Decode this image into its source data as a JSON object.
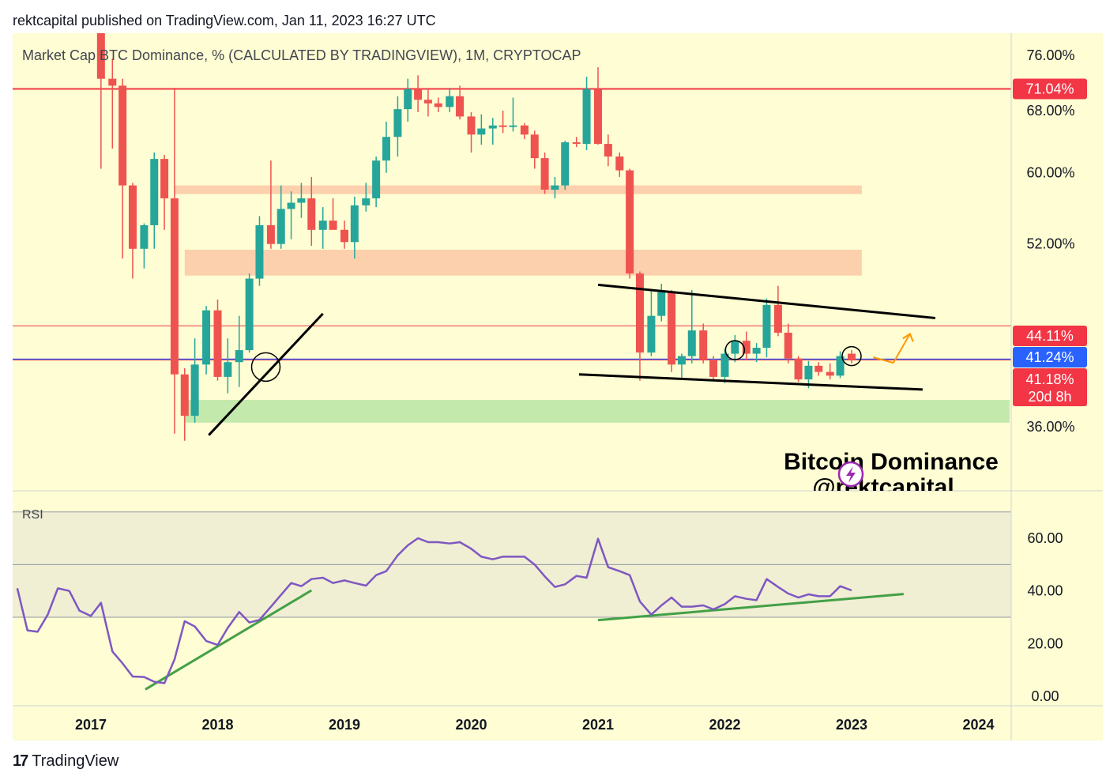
{
  "header": {
    "published_line": "rektcapital published on TradingView.com, Jan 11, 2023 16:27 UTC"
  },
  "footer": {
    "brand_mark": "17",
    "brand": "TradingView"
  },
  "colors": {
    "panel_bg": "#fefdd3",
    "up": "#26a69a",
    "down": "#ef5350",
    "resistance_line": "#f23645",
    "current_line": "#2962ff",
    "zone_salmon": "#fbc8a6",
    "zone_green": "#b8e5a5",
    "rsi_line": "#7e57c2",
    "trend_green": "#43a047",
    "arrow_orange": "#ff9800"
  },
  "chart_data": [
    {
      "type": "candlestick",
      "title": "Market Cap BTC Dominance, % (CALCULATED BY TRADINGVIEW), 1M, CRYPTOCAP",
      "interval": "1M",
      "y_scale": "log",
      "ylim": [
        30.5,
        78.5
      ],
      "x_axis_labels": [
        "2017",
        "2018",
        "2019",
        "2020",
        "2021",
        "2022",
        "2023",
        "2024"
      ],
      "y_ticks": [
        "76.00%",
        "68.00%",
        "60.00%",
        "52.00%",
        "36.00%"
      ],
      "y_tick_values": [
        76,
        68,
        60,
        52,
        36
      ],
      "grid": false,
      "price_labels": [
        {
          "text": "71.04%",
          "value": 71.04,
          "color": "#f23645"
        },
        {
          "text": "44.11%",
          "value": 44.11,
          "color": "#f23645"
        },
        {
          "text": "41.24%",
          "value": 41.24,
          "color": "#2962ff"
        },
        {
          "text": "41.18%",
          "sub": "20d 8h",
          "value": 41.18,
          "color": "#f23645"
        }
      ],
      "horizontal_lines": [
        {
          "value": 71.04,
          "color": "#f23645",
          "width": 2
        },
        {
          "value": 44.11,
          "color": "#f23645",
          "width": 1
        },
        {
          "value": 41.24,
          "color": "#2962ff",
          "width": 1.5
        },
        {
          "value": 41.18,
          "color": "#f23645",
          "width": 1
        }
      ],
      "zones": [
        {
          "from_date": "2017.66",
          "to_date": "2023.08",
          "low": 57.5,
          "high": 58.5,
          "color": "#fbc8a6"
        },
        {
          "from_date": "2017.74",
          "to_date": "2023.08",
          "low": 48.8,
          "high": 51.4,
          "color": "#fbc8a6"
        },
        {
          "from_date": "2017.74",
          "to_date": "2024.25",
          "low": 36.3,
          "high": 38.0,
          "color": "#b8e5a5"
        }
      ],
      "trendlines": [
        {
          "from": [
            "2017.93",
            35.4
          ],
          "to": [
            "2018.83",
            45.2
          ],
          "color": "#000000"
        },
        {
          "from": [
            "2021.00",
            47.9
          ],
          "to": [
            "2023.66",
            44.8
          ],
          "color": "#000000"
        },
        {
          "from": [
            "2020.85",
            40.0
          ],
          "to": [
            "2023.56",
            38.8
          ],
          "color": "#000000"
        }
      ],
      "markers": [
        {
          "type": "circle",
          "date": "2018.38",
          "value": 40.6
        },
        {
          "type": "circle",
          "date": "2022.08",
          "value": 42.0
        },
        {
          "type": "circle",
          "date": "2023.00",
          "value": 41.5
        }
      ],
      "arrow": {
        "from": [
          "2023.17",
          41.2
        ],
        "to": [
          "2023.46",
          43.4
        ],
        "color": "#ff9800"
      },
      "watermark": {
        "line1": "Bitcoin Dominance",
        "line2": "@rektcapital"
      },
      "candles": [
        {
          "d": "2017.08",
          "o": 88.0,
          "h": 88.5,
          "l": 60.5,
          "c": 72.5
        },
        {
          "d": "2017.17",
          "o": 72.5,
          "h": 75.5,
          "l": 63.0,
          "c": 71.5
        },
        {
          "d": "2017.25",
          "o": 71.5,
          "h": 72.5,
          "l": 50.5,
          "c": 58.5
        },
        {
          "d": "2017.33",
          "o": 58.5,
          "h": 58.8,
          "l": 48.5,
          "c": 51.5
        },
        {
          "d": "2017.42",
          "o": 51.5,
          "h": 54.2,
          "l": 49.5,
          "c": 54.0
        },
        {
          "d": "2017.50",
          "o": 54.0,
          "h": 62.5,
          "l": 51.5,
          "c": 61.7
        },
        {
          "d": "2017.58",
          "o": 61.7,
          "h": 62.2,
          "l": 53.5,
          "c": 57.0
        },
        {
          "d": "2017.66",
          "o": 57.0,
          "h": 71.2,
          "l": 35.5,
          "c": 40.0
        },
        {
          "d": "2017.74",
          "o": 40.0,
          "h": 40.5,
          "l": 35.0,
          "c": 36.8
        },
        {
          "d": "2017.82",
          "o": 36.8,
          "h": 43.0,
          "l": 36.3,
          "c": 40.8
        },
        {
          "d": "2017.91",
          "o": 40.8,
          "h": 45.9,
          "l": 40.0,
          "c": 45.5
        },
        {
          "d": "2018.00",
          "o": 45.5,
          "h": 46.5,
          "l": 39.5,
          "c": 39.8
        },
        {
          "d": "2018.08",
          "o": 39.8,
          "h": 43.0,
          "l": 38.5,
          "c": 41.0
        },
        {
          "d": "2018.17",
          "o": 41.0,
          "h": 45.0,
          "l": 39.0,
          "c": 42.0
        },
        {
          "d": "2018.25",
          "o": 42.0,
          "h": 49.0,
          "l": 41.8,
          "c": 48.5
        },
        {
          "d": "2018.33",
          "o": 48.5,
          "h": 55.0,
          "l": 47.8,
          "c": 54.0
        },
        {
          "d": "2018.42",
          "o": 54.0,
          "h": 61.5,
          "l": 51.5,
          "c": 52.0
        },
        {
          "d": "2018.50",
          "o": 52.0,
          "h": 58.5,
          "l": 51.5,
          "c": 55.8
        },
        {
          "d": "2018.58",
          "o": 55.8,
          "h": 57.8,
          "l": 52.5,
          "c": 56.5
        },
        {
          "d": "2018.66",
          "o": 56.5,
          "h": 58.8,
          "l": 54.8,
          "c": 57.0
        },
        {
          "d": "2018.74",
          "o": 57.0,
          "h": 59.5,
          "l": 51.8,
          "c": 53.5
        },
        {
          "d": "2018.83",
          "o": 53.5,
          "h": 56.0,
          "l": 51.5,
          "c": 54.5
        },
        {
          "d": "2018.91",
          "o": 54.5,
          "h": 57.0,
          "l": 53.8,
          "c": 53.5
        },
        {
          "d": "2019.00",
          "o": 53.5,
          "h": 54.5,
          "l": 51.5,
          "c": 52.2
        },
        {
          "d": "2019.08",
          "o": 52.2,
          "h": 57.2,
          "l": 50.5,
          "c": 56.2
        },
        {
          "d": "2019.17",
          "o": 56.2,
          "h": 58.8,
          "l": 55.5,
          "c": 57.0
        },
        {
          "d": "2019.25",
          "o": 57.0,
          "h": 62.0,
          "l": 56.0,
          "c": 61.5
        },
        {
          "d": "2019.33",
          "o": 61.5,
          "h": 66.5,
          "l": 60.0,
          "c": 64.5
        },
        {
          "d": "2019.42",
          "o": 64.5,
          "h": 70.0,
          "l": 62.0,
          "c": 68.2
        },
        {
          "d": "2019.50",
          "o": 68.2,
          "h": 72.5,
          "l": 66.5,
          "c": 71.0
        },
        {
          "d": "2019.58",
          "o": 71.0,
          "h": 73.0,
          "l": 67.8,
          "c": 69.5
        },
        {
          "d": "2019.66",
          "o": 69.5,
          "h": 71.0,
          "l": 67.2,
          "c": 69.0
        },
        {
          "d": "2019.74",
          "o": 69.0,
          "h": 69.8,
          "l": 67.8,
          "c": 68.5
        },
        {
          "d": "2019.83",
          "o": 68.5,
          "h": 71.2,
          "l": 67.8,
          "c": 70.0
        },
        {
          "d": "2019.91",
          "o": 70.0,
          "h": 71.5,
          "l": 66.8,
          "c": 67.2
        },
        {
          "d": "2020.00",
          "o": 67.2,
          "h": 67.8,
          "l": 62.5,
          "c": 64.8
        },
        {
          "d": "2020.08",
          "o": 64.8,
          "h": 67.5,
          "l": 63.5,
          "c": 65.6
        },
        {
          "d": "2020.17",
          "o": 65.6,
          "h": 67.0,
          "l": 63.5,
          "c": 66.0
        },
        {
          "d": "2020.25",
          "o": 66.0,
          "h": 68.0,
          "l": 65.0,
          "c": 65.8
        },
        {
          "d": "2020.33",
          "o": 65.8,
          "h": 69.8,
          "l": 65.2,
          "c": 66.0
        },
        {
          "d": "2020.42",
          "o": 66.0,
          "h": 66.3,
          "l": 64.2,
          "c": 64.8
        },
        {
          "d": "2020.50",
          "o": 64.8,
          "h": 65.3,
          "l": 60.5,
          "c": 61.8
        },
        {
          "d": "2020.58",
          "o": 61.8,
          "h": 62.5,
          "l": 57.5,
          "c": 58.0
        },
        {
          "d": "2020.66",
          "o": 58.0,
          "h": 59.5,
          "l": 57.0,
          "c": 58.5
        },
        {
          "d": "2020.74",
          "o": 58.5,
          "h": 64.0,
          "l": 58.0,
          "c": 63.8
        },
        {
          "d": "2020.83",
          "o": 63.8,
          "h": 64.5,
          "l": 63.2,
          "c": 63.6
        },
        {
          "d": "2020.91",
          "o": 63.6,
          "h": 72.8,
          "l": 62.8,
          "c": 71.0
        },
        {
          "d": "2021.00",
          "o": 71.0,
          "h": 74.2,
          "l": 63.5,
          "c": 63.6
        },
        {
          "d": "2021.08",
          "o": 63.6,
          "h": 64.8,
          "l": 60.8,
          "c": 62.0
        },
        {
          "d": "2021.17",
          "o": 62.0,
          "h": 62.5,
          "l": 59.5,
          "c": 60.3
        },
        {
          "d": "2021.25",
          "o": 60.3,
          "h": 60.5,
          "l": 48.5,
          "c": 49.0
        },
        {
          "d": "2021.33",
          "o": 49.0,
          "h": 49.2,
          "l": 39.5,
          "c": 41.8
        },
        {
          "d": "2021.42",
          "o": 41.8,
          "h": 47.5,
          "l": 41.5,
          "c": 45.0
        },
        {
          "d": "2021.50",
          "o": 45.0,
          "h": 48.0,
          "l": 44.5,
          "c": 47.2
        },
        {
          "d": "2021.58",
          "o": 47.2,
          "h": 47.4,
          "l": 40.2,
          "c": 40.8
        },
        {
          "d": "2021.66",
          "o": 40.8,
          "h": 41.7,
          "l": 39.6,
          "c": 41.5
        },
        {
          "d": "2021.74",
          "o": 41.5,
          "h": 47.4,
          "l": 40.9,
          "c": 43.7
        },
        {
          "d": "2021.83",
          "o": 43.7,
          "h": 44.3,
          "l": 40.9,
          "c": 41.2
        },
        {
          "d": "2021.91",
          "o": 41.2,
          "h": 41.5,
          "l": 39.5,
          "c": 39.8
        },
        {
          "d": "2022.00",
          "o": 39.8,
          "h": 42.1,
          "l": 39.3,
          "c": 41.7
        },
        {
          "d": "2022.08",
          "o": 41.7,
          "h": 43.3,
          "l": 41.0,
          "c": 42.8
        },
        {
          "d": "2022.17",
          "o": 42.8,
          "h": 43.6,
          "l": 41.2,
          "c": 41.7
        },
        {
          "d": "2022.25",
          "o": 41.7,
          "h": 42.6,
          "l": 41.0,
          "c": 42.2
        },
        {
          "d": "2022.33",
          "o": 42.2,
          "h": 46.6,
          "l": 41.4,
          "c": 46.0
        },
        {
          "d": "2022.42",
          "o": 46.0,
          "h": 47.8,
          "l": 43.2,
          "c": 43.5
        },
        {
          "d": "2022.50",
          "o": 43.5,
          "h": 44.3,
          "l": 40.9,
          "c": 41.3
        },
        {
          "d": "2022.58",
          "o": 41.3,
          "h": 41.5,
          "l": 39.4,
          "c": 39.6
        },
        {
          "d": "2022.66",
          "o": 39.6,
          "h": 41.1,
          "l": 38.9,
          "c": 40.7
        },
        {
          "d": "2022.74",
          "o": 40.7,
          "h": 41.0,
          "l": 39.9,
          "c": 40.2
        },
        {
          "d": "2022.83",
          "o": 40.2,
          "h": 40.9,
          "l": 39.6,
          "c": 39.9
        },
        {
          "d": "2022.91",
          "o": 39.9,
          "h": 41.9,
          "l": 39.7,
          "c": 41.5
        },
        {
          "d": "2023.00",
          "o": 41.7,
          "h": 42.0,
          "l": 40.9,
          "c": 41.2
        }
      ]
    },
    {
      "type": "line",
      "title": "RSI",
      "ylim": [
        -3,
        65
      ],
      "y_ticks": [
        "60.00",
        "40.00",
        "20.00",
        "0.00"
      ],
      "y_tick_values": [
        60,
        40,
        20,
        0
      ],
      "bands": [
        30,
        50,
        70
      ],
      "band_fill": "#f0eed3",
      "series": [
        {
          "x": [
            "2016.42",
            "2016.50",
            "2016.58",
            "2016.66",
            "2016.74",
            "2016.83",
            "2016.91",
            "2017.00",
            "2017.08",
            "2017.17",
            "2017.25",
            "2017.33",
            "2017.42",
            "2017.50",
            "2017.58",
            "2017.66",
            "2017.74",
            "2017.82",
            "2017.91",
            "2018.00",
            "2018.08",
            "2018.17",
            "2018.25",
            "2018.33",
            "2018.42",
            "2018.50",
            "2018.58",
            "2018.66",
            "2018.74",
            "2018.83",
            "2018.91",
            "2019.00",
            "2019.08",
            "2019.17",
            "2019.25",
            "2019.33",
            "2019.42",
            "2019.50",
            "2019.58",
            "2019.66",
            "2019.74",
            "2019.83",
            "2019.91",
            "2020.00",
            "2020.08",
            "2020.17",
            "2020.25",
            "2020.33",
            "2020.42",
            "2020.50",
            "2020.58",
            "2020.66",
            "2020.74",
            "2020.83",
            "2020.91",
            "2021.00",
            "2021.08",
            "2021.17",
            "2021.25",
            "2021.33",
            "2021.42",
            "2021.50",
            "2021.58",
            "2021.66",
            "2021.74",
            "2021.83",
            "2021.91",
            "2022.00",
            "2022.08",
            "2022.17",
            "2022.25",
            "2022.33",
            "2022.42",
            "2022.50",
            "2022.58",
            "2022.66",
            "2022.74",
            "2022.83",
            "2022.91",
            "2023.00"
          ],
          "y": [
            41,
            25,
            24.5,
            31,
            41,
            40,
            32.5,
            30.5,
            35.5,
            17,
            12.5,
            7.5,
            7.3,
            5.5,
            5,
            14,
            28.5,
            26.5,
            21,
            19.5,
            26,
            32,
            28,
            29,
            34,
            38.5,
            43,
            41.8,
            44.5,
            45,
            43,
            44,
            43,
            42,
            46,
            47.5,
            53.5,
            57.3,
            60,
            58.5,
            58.5,
            58,
            58.5,
            56,
            53,
            52,
            53,
            53,
            53,
            50,
            45.5,
            41.5,
            42.5,
            45.7,
            45,
            59.8,
            49,
            47.5,
            46,
            36,
            31,
            34.5,
            37.5,
            34,
            34,
            34.5,
            33,
            35,
            38,
            37,
            36.5,
            44.5,
            41.5,
            39,
            37.5,
            38.7,
            38,
            38,
            41.8,
            40.2
          ]
        }
      ],
      "trendlines": [
        {
          "from": [
            "2017.43",
            2.6
          ],
          "to": [
            "2018.74",
            40.2
          ],
          "color": "#43a047"
        },
        {
          "from": [
            "2021.00",
            28.9
          ],
          "to": [
            "2023.41",
            38.8
          ],
          "color": "#43a047"
        }
      ]
    }
  ]
}
